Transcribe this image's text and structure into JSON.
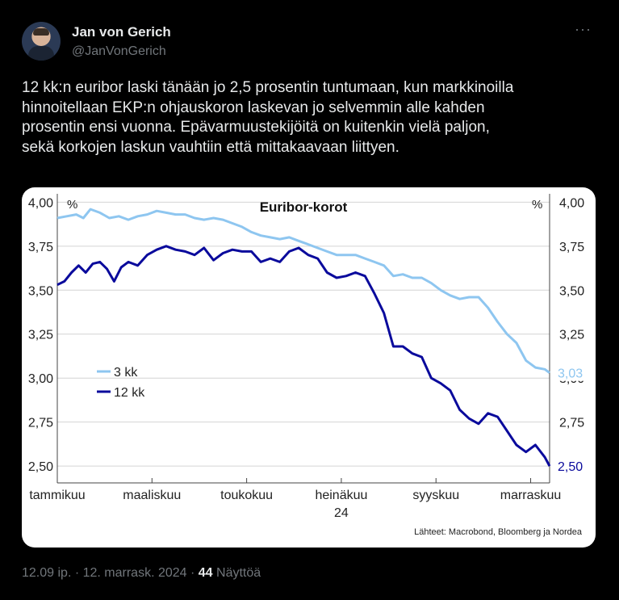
{
  "author": {
    "name": "Jan von Gerich",
    "handle": "@JanVonGerich",
    "avatar_icon": "person-portrait-icon"
  },
  "more_icon": "more-horizontal-icon",
  "tweet": {
    "lines": [
      "12 kk:n euribor laski tänään jo 2,5 prosentin tuntumaan, kun markkinoilla",
      "hinnoitellaan EKP:n ohjauskoron laskevan jo selvemmin alle kahden",
      "prosentin ensi vuonna. Epävarmuustekijöitä on kuitenkin vielä paljon,",
      "sekä korkojen laskun vauhtiin että mittakaavaan liittyen."
    ]
  },
  "footer": {
    "time": "12.09 ip.",
    "sep1": " · ",
    "date": "12. marrask. 2024",
    "sep2": " · ",
    "views_count": "44",
    "views_label": " Näyttöä"
  },
  "chart_data": {
    "type": "line",
    "title": "Euribor-korot",
    "unit_left": "%",
    "unit_right": "%",
    "ylim": [
      2.45,
      4.02
    ],
    "yticks": [
      "4,00",
      "3,75",
      "3,50",
      "3,25",
      "3,00",
      "2,75",
      "2,50"
    ],
    "ytick_values": [
      4.0,
      3.75,
      3.5,
      3.25,
      3.0,
      2.75,
      2.5
    ],
    "x_domain": [
      0,
      10.4
    ],
    "xtick_labels": [
      {
        "label": "tammikuu",
        "x": 0
      },
      {
        "label": "maaliskuu",
        "x": 2
      },
      {
        "label": "toukokuu",
        "x": 4
      },
      {
        "label": "heinäkuu",
        "x": 6,
        "sub": "24"
      },
      {
        "label": "syyskuu",
        "x": 8
      },
      {
        "label": "marraskuu",
        "x": 10
      }
    ],
    "legend": [
      {
        "name": "3 kk",
        "color": "#8ec6f0"
      },
      {
        "name": "12 kk",
        "color": "#0a0a9c"
      }
    ],
    "end_labels": [
      {
        "series": "3 kk",
        "text": "3,03",
        "color": "#8ec6f0"
      },
      {
        "series": "12 kk",
        "text": "2,50",
        "color": "#0a0a9c"
      }
    ],
    "source": "Lähteet: Macrobond, Bloomberg ja Nordea",
    "series": [
      {
        "name": "3 kk",
        "color": "#8ec6f0",
        "points": [
          [
            0.0,
            3.91
          ],
          [
            0.2,
            3.92
          ],
          [
            0.4,
            3.93
          ],
          [
            0.55,
            3.91
          ],
          [
            0.7,
            3.96
          ],
          [
            0.9,
            3.94
          ],
          [
            1.1,
            3.91
          ],
          [
            1.3,
            3.92
          ],
          [
            1.5,
            3.9
          ],
          [
            1.7,
            3.92
          ],
          [
            1.9,
            3.93
          ],
          [
            2.1,
            3.95
          ],
          [
            2.3,
            3.94
          ],
          [
            2.5,
            3.93
          ],
          [
            2.7,
            3.93
          ],
          [
            2.9,
            3.91
          ],
          [
            3.1,
            3.9
          ],
          [
            3.3,
            3.91
          ],
          [
            3.5,
            3.9
          ],
          [
            3.7,
            3.88
          ],
          [
            3.9,
            3.86
          ],
          [
            4.1,
            3.83
          ],
          [
            4.3,
            3.81
          ],
          [
            4.5,
            3.8
          ],
          [
            4.7,
            3.79
          ],
          [
            4.9,
            3.8
          ],
          [
            5.1,
            3.78
          ],
          [
            5.3,
            3.76
          ],
          [
            5.5,
            3.74
          ],
          [
            5.7,
            3.72
          ],
          [
            5.9,
            3.7
          ],
          [
            6.1,
            3.7
          ],
          [
            6.3,
            3.7
          ],
          [
            6.5,
            3.68
          ],
          [
            6.7,
            3.66
          ],
          [
            6.9,
            3.64
          ],
          [
            7.1,
            3.58
          ],
          [
            7.3,
            3.59
          ],
          [
            7.5,
            3.57
          ],
          [
            7.7,
            3.57
          ],
          [
            7.9,
            3.54
          ],
          [
            8.1,
            3.5
          ],
          [
            8.3,
            3.47
          ],
          [
            8.5,
            3.45
          ],
          [
            8.7,
            3.46
          ],
          [
            8.9,
            3.46
          ],
          [
            9.1,
            3.4
          ],
          [
            9.3,
            3.32
          ],
          [
            9.5,
            3.25
          ],
          [
            9.7,
            3.2
          ],
          [
            9.9,
            3.1
          ],
          [
            10.1,
            3.06
          ],
          [
            10.3,
            3.05
          ],
          [
            10.4,
            3.03
          ]
        ]
      },
      {
        "name": "12 kk",
        "color": "#0a0a9c",
        "points": [
          [
            0.0,
            3.53
          ],
          [
            0.15,
            3.55
          ],
          [
            0.3,
            3.6
          ],
          [
            0.45,
            3.64
          ],
          [
            0.6,
            3.6
          ],
          [
            0.75,
            3.65
          ],
          [
            0.9,
            3.66
          ],
          [
            1.05,
            3.62
          ],
          [
            1.2,
            3.55
          ],
          [
            1.35,
            3.63
          ],
          [
            1.5,
            3.66
          ],
          [
            1.7,
            3.64
          ],
          [
            1.9,
            3.7
          ],
          [
            2.1,
            3.73
          ],
          [
            2.3,
            3.75
          ],
          [
            2.5,
            3.73
          ],
          [
            2.7,
            3.72
          ],
          [
            2.9,
            3.7
          ],
          [
            3.1,
            3.74
          ],
          [
            3.3,
            3.67
          ],
          [
            3.5,
            3.71
          ],
          [
            3.7,
            3.73
          ],
          [
            3.9,
            3.72
          ],
          [
            4.1,
            3.72
          ],
          [
            4.3,
            3.66
          ],
          [
            4.5,
            3.68
          ],
          [
            4.7,
            3.66
          ],
          [
            4.9,
            3.72
          ],
          [
            5.1,
            3.74
          ],
          [
            5.3,
            3.7
          ],
          [
            5.5,
            3.68
          ],
          [
            5.7,
            3.6
          ],
          [
            5.9,
            3.57
          ],
          [
            6.1,
            3.58
          ],
          [
            6.3,
            3.6
          ],
          [
            6.5,
            3.58
          ],
          [
            6.7,
            3.48
          ],
          [
            6.9,
            3.37
          ],
          [
            7.1,
            3.18
          ],
          [
            7.3,
            3.18
          ],
          [
            7.5,
            3.14
          ],
          [
            7.7,
            3.12
          ],
          [
            7.9,
            3.0
          ],
          [
            8.1,
            2.97
          ],
          [
            8.3,
            2.93
          ],
          [
            8.5,
            2.82
          ],
          [
            8.7,
            2.77
          ],
          [
            8.9,
            2.74
          ],
          [
            9.1,
            2.8
          ],
          [
            9.3,
            2.78
          ],
          [
            9.5,
            2.7
          ],
          [
            9.7,
            2.62
          ],
          [
            9.9,
            2.58
          ],
          [
            10.1,
            2.62
          ],
          [
            10.3,
            2.55
          ],
          [
            10.4,
            2.5
          ]
        ]
      }
    ]
  }
}
